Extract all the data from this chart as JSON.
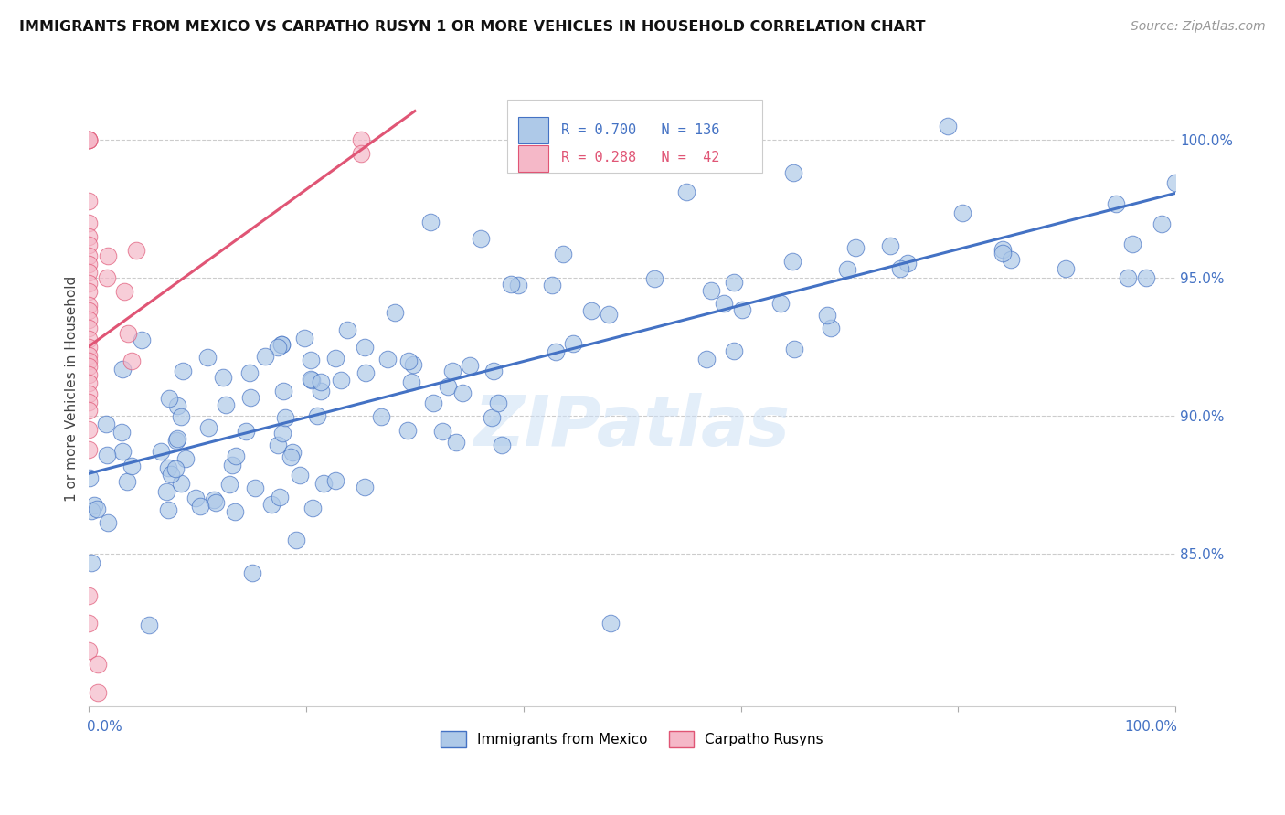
{
  "title": "IMMIGRANTS FROM MEXICO VS CARPATHO RUSYN 1 OR MORE VEHICLES IN HOUSEHOLD CORRELATION CHART",
  "source": "Source: ZipAtlas.com",
  "ylabel": "1 or more Vehicles in Household",
  "xlim": [
    0.0,
    1.0
  ],
  "ylim": [
    0.795,
    1.025
  ],
  "R_mexico": 0.7,
  "N_mexico": 136,
  "R_carpatho": 0.288,
  "N_carpatho": 42,
  "color_mexico": "#aec9e8",
  "color_carpatho": "#f5b8c8",
  "line_color_mexico": "#4472c4",
  "line_color_carpatho": "#e05575",
  "watermark": "ZIPatlas",
  "yticks": [
    0.85,
    0.9,
    0.95,
    1.0
  ],
  "ytick_labels": [
    "85.0%",
    "90.0%",
    "95.0%",
    "100.0%"
  ],
  "seed": 12345
}
